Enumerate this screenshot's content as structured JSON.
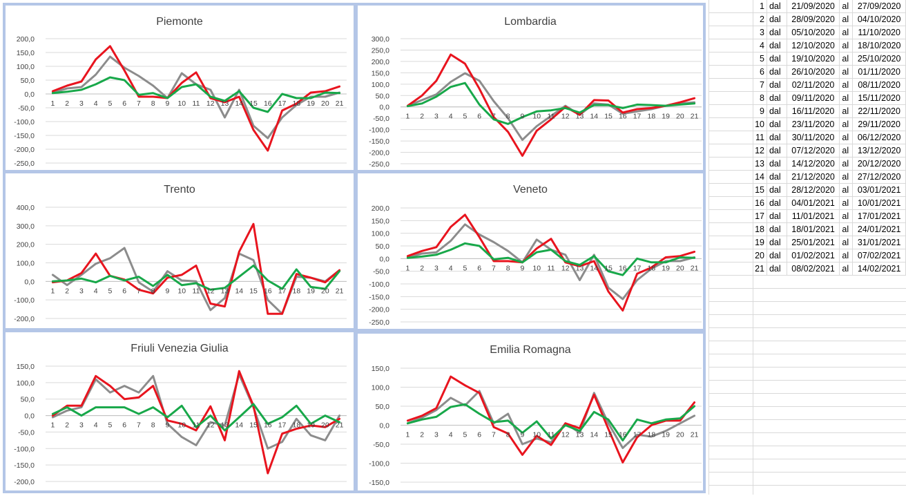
{
  "colors": {
    "red_series": "#e8141e",
    "gray_series": "#8c8c8c",
    "green_series": "#18a84a",
    "panel_border": "#b4c6e7",
    "gridline": "#d9d9d9"
  },
  "chart_data": [
    {
      "type": "line",
      "title": "Piemonte",
      "x": [
        1,
        2,
        3,
        4,
        5,
        6,
        7,
        8,
        9,
        10,
        11,
        12,
        13,
        14,
        15,
        16,
        17,
        18,
        19,
        20,
        21
      ],
      "ylim": [
        -250,
        200
      ],
      "yticks": [
        "200,0",
        "150,0",
        "100,0",
        "50,0",
        "0,0",
        "-50,0",
        "-100,0",
        "-150,0",
        "-200,0",
        "-250,0"
      ],
      "grid": true,
      "series": [
        {
          "color_key": "gray_series",
          "values": [
            5,
            20,
            25,
            70,
            135,
            95,
            65,
            30,
            -15,
            75,
            35,
            15,
            -85,
            15,
            -115,
            -160,
            -85,
            -40,
            -10,
            -10,
            5
          ]
        },
        {
          "color_key": "red_series",
          "values": [
            10,
            30,
            45,
            125,
            173,
            85,
            -10,
            -10,
            -15,
            40,
            78,
            -15,
            -30,
            -10,
            -130,
            -205,
            -60,
            -35,
            5,
            10,
            27
          ]
        },
        {
          "color_key": "green_series",
          "values": [
            3,
            8,
            15,
            35,
            60,
            50,
            -3,
            3,
            -15,
            25,
            35,
            -10,
            -25,
            10,
            -50,
            -65,
            0,
            -15,
            -15,
            5,
            3
          ]
        }
      ]
    },
    {
      "type": "line",
      "title": "Lombardia",
      "x": [
        1,
        2,
        3,
        4,
        5,
        6,
        7,
        8,
        9,
        10,
        11,
        12,
        13,
        14,
        15,
        16,
        17,
        18,
        19,
        20,
        21
      ],
      "ylim": [
        -250,
        300
      ],
      "yticks": [
        "300,0",
        "250,0",
        "200,0",
        "150,0",
        "100,0",
        "50,0",
        "0,0",
        "-50,0",
        "-100,0",
        "-150,0",
        "-200,0",
        "-250,0"
      ],
      "grid": true,
      "series": [
        {
          "color_key": "gray_series",
          "values": [
            5,
            30,
            55,
            110,
            148,
            115,
            25,
            -50,
            -145,
            -85,
            -40,
            5,
            -35,
            15,
            10,
            -30,
            -20,
            -10,
            5,
            15,
            20
          ]
        },
        {
          "color_key": "red_series",
          "values": [
            5,
            50,
            115,
            230,
            190,
            80,
            -45,
            -110,
            -215,
            -105,
            -55,
            0,
            -35,
            30,
            28,
            -25,
            -10,
            -5,
            5,
            20,
            38
          ]
        },
        {
          "color_key": "green_series",
          "values": [
            3,
            15,
            45,
            88,
            105,
            10,
            -55,
            -75,
            -45,
            -20,
            -15,
            -5,
            -25,
            8,
            8,
            -5,
            10,
            8,
            5,
            10,
            15
          ]
        }
      ]
    },
    {
      "type": "line",
      "title": "Trento",
      "x": [
        1,
        2,
        3,
        4,
        5,
        6,
        7,
        8,
        9,
        10,
        11,
        12,
        13,
        14,
        15,
        16,
        17,
        18,
        19,
        20,
        21
      ],
      "ylim": [
        -200,
        400
      ],
      "yticks": [
        "400,0",
        "300,0",
        "200,0",
        "100,0",
        "0,0",
        "-100,0",
        "-200,0"
      ],
      "grid": true,
      "series": [
        {
          "color_key": "gray_series",
          "values": [
            35,
            -20,
            35,
            95,
            125,
            180,
            -5,
            -55,
            55,
            5,
            0,
            -155,
            -90,
            150,
            115,
            -100,
            -175,
            25,
            20,
            0,
            60
          ]
        },
        {
          "color_key": "red_series",
          "values": [
            -5,
            5,
            45,
            150,
            30,
            10,
            -45,
            -65,
            20,
            35,
            85,
            -120,
            -135,
            160,
            310,
            -175,
            -175,
            40,
            20,
            -5,
            60
          ]
        },
        {
          "color_key": "green_series",
          "values": [
            0,
            5,
            15,
            -5,
            30,
            5,
            25,
            -25,
            35,
            -20,
            -10,
            -45,
            -35,
            25,
            85,
            5,
            -40,
            65,
            -30,
            -40,
            55
          ]
        }
      ]
    },
    {
      "type": "line",
      "title": "Veneto",
      "x": [
        1,
        2,
        3,
        4,
        5,
        6,
        7,
        8,
        9,
        10,
        11,
        12,
        13,
        14,
        15,
        16,
        17,
        18,
        19,
        20,
        21
      ],
      "ylim": [
        -250,
        200
      ],
      "yticks": [
        "200,0",
        "150,0",
        "100,0",
        "50,0",
        "0,0",
        "-50,0",
        "-100,0",
        "-150,0",
        "-200,0",
        "-250,0"
      ],
      "grid": true,
      "series": [
        {
          "color_key": "gray_series",
          "values": [
            5,
            20,
            25,
            70,
            135,
            95,
            65,
            30,
            -15,
            75,
            35,
            15,
            -85,
            15,
            -115,
            -160,
            -85,
            -40,
            -10,
            -10,
            5
          ]
        },
        {
          "color_key": "red_series",
          "values": [
            10,
            30,
            45,
            125,
            173,
            85,
            -10,
            -10,
            -15,
            40,
            78,
            -15,
            -30,
            -10,
            -130,
            -205,
            -60,
            -35,
            5,
            10,
            27
          ]
        },
        {
          "color_key": "green_series",
          "values": [
            3,
            8,
            15,
            35,
            60,
            50,
            -3,
            3,
            -15,
            25,
            35,
            -10,
            -25,
            10,
            -50,
            -65,
            0,
            -15,
            -15,
            5,
            3
          ]
        }
      ]
    },
    {
      "type": "line",
      "title": "Friuli Venezia Giulia",
      "x": [
        1,
        2,
        3,
        4,
        5,
        6,
        7,
        8,
        9,
        10,
        11,
        12,
        13,
        14,
        15,
        16,
        17,
        18,
        19,
        20,
        21
      ],
      "ylim": [
        -200,
        150
      ],
      "yticks": [
        "150,0",
        "100,0",
        "50,0",
        "0,0",
        "-50,0",
        "-100,0",
        "-150,0",
        "-200,0"
      ],
      "grid": true,
      "series": [
        {
          "color_key": "gray_series",
          "values": [
            -5,
            15,
            25,
            110,
            70,
            90,
            70,
            120,
            -25,
            -65,
            -90,
            -20,
            -30,
            125,
            25,
            -100,
            -80,
            -10,
            -60,
            -75,
            0
          ]
        },
        {
          "color_key": "red_series",
          "values": [
            0,
            30,
            30,
            120,
            90,
            50,
            55,
            90,
            -15,
            -25,
            -45,
            28,
            -75,
            135,
            30,
            -175,
            -55,
            -40,
            -30,
            -35,
            -10
          ]
        },
        {
          "color_key": "green_series",
          "values": [
            5,
            25,
            0,
            25,
            25,
            25,
            5,
            25,
            -5,
            30,
            -35,
            0,
            -45,
            -5,
            35,
            -25,
            -5,
            30,
            -25,
            0,
            -20
          ]
        }
      ]
    },
    {
      "type": "line",
      "title": "Emilia Romagna",
      "x": [
        1,
        2,
        3,
        4,
        5,
        6,
        7,
        8,
        9,
        10,
        11,
        12,
        13,
        14,
        15,
        16,
        17,
        18,
        19,
        20,
        21
      ],
      "ylim": [
        -150,
        150
      ],
      "yticks": [
        "150,0",
        "100,0",
        "50,0",
        "0,0",
        "-50,0",
        "-100,0",
        "-150,0"
      ],
      "grid": true,
      "series": [
        {
          "color_key": "gray_series",
          "values": [
            5,
            20,
            40,
            72,
            52,
            90,
            5,
            30,
            -50,
            -35,
            -45,
            5,
            -20,
            85,
            5,
            -60,
            -25,
            -30,
            -15,
            5,
            25
          ]
        },
        {
          "color_key": "red_series",
          "values": [
            12,
            25,
            45,
            128,
            105,
            85,
            -5,
            -22,
            -78,
            -28,
            -52,
            5,
            -8,
            80,
            -10,
            -98,
            -32,
            0,
            12,
            12,
            60
          ]
        },
        {
          "color_key": "green_series",
          "values": [
            5,
            15,
            22,
            48,
            55,
            30,
            8,
            12,
            -20,
            10,
            -35,
            0,
            -15,
            35,
            15,
            -40,
            15,
            5,
            15,
            18,
            50
          ]
        }
      ]
    }
  ],
  "table": {
    "rows": [
      {
        "n": "1",
        "dal": "dal",
        "from": "21/09/2020",
        "al": "al",
        "to": "27/09/2020"
      },
      {
        "n": "2",
        "dal": "dal",
        "from": "28/09/2020",
        "al": "al",
        "to": "04/10/2020"
      },
      {
        "n": "3",
        "dal": "dal",
        "from": "05/10/2020",
        "al": "al",
        "to": "11/10/2020"
      },
      {
        "n": "4",
        "dal": "dal",
        "from": "12/10/2020",
        "al": "al",
        "to": "18/10/2020"
      },
      {
        "n": "5",
        "dal": "dal",
        "from": "19/10/2020",
        "al": "al",
        "to": "25/10/2020"
      },
      {
        "n": "6",
        "dal": "dal",
        "from": "26/10/2020",
        "al": "al",
        "to": "01/11/2020"
      },
      {
        "n": "7",
        "dal": "dal",
        "from": "02/11/2020",
        "al": "al",
        "to": "08/11/2020"
      },
      {
        "n": "8",
        "dal": "dal",
        "from": "09/11/2020",
        "al": "al",
        "to": "15/11/2020"
      },
      {
        "n": "9",
        "dal": "dal",
        "from": "16/11/2020",
        "al": "al",
        "to": "22/11/2020"
      },
      {
        "n": "10",
        "dal": "dal",
        "from": "23/11/2020",
        "al": "al",
        "to": "29/11/2020"
      },
      {
        "n": "11",
        "dal": "dal",
        "from": "30/11/2020",
        "al": "al",
        "to": "06/12/2020"
      },
      {
        "n": "12",
        "dal": "dal",
        "from": "07/12/2020",
        "al": "al",
        "to": "13/12/2020"
      },
      {
        "n": "13",
        "dal": "dal",
        "from": "14/12/2020",
        "al": "al",
        "to": "20/12/2020"
      },
      {
        "n": "14",
        "dal": "dal",
        "from": "21/12/2020",
        "al": "al",
        "to": "27/12/2020"
      },
      {
        "n": "15",
        "dal": "dal",
        "from": "28/12/2020",
        "al": "al",
        "to": "03/01/2021"
      },
      {
        "n": "16",
        "dal": "dal",
        "from": "04/01/2021",
        "al": "al",
        "to": "10/01/2021"
      },
      {
        "n": "17",
        "dal": "dal",
        "from": "11/01/2021",
        "al": "al",
        "to": "17/01/2021"
      },
      {
        "n": "18",
        "dal": "dal",
        "from": "18/01/2021",
        "al": "al",
        "to": "24/01/2021"
      },
      {
        "n": "19",
        "dal": "dal",
        "from": "25/01/2021",
        "al": "al",
        "to": "31/01/2021"
      },
      {
        "n": "20",
        "dal": "dal",
        "from": "01/02/2021",
        "al": "al",
        "to": "07/02/2021"
      },
      {
        "n": "21",
        "dal": "dal",
        "from": "08/02/2021",
        "al": "al",
        "to": "14/02/2021"
      }
    ]
  }
}
